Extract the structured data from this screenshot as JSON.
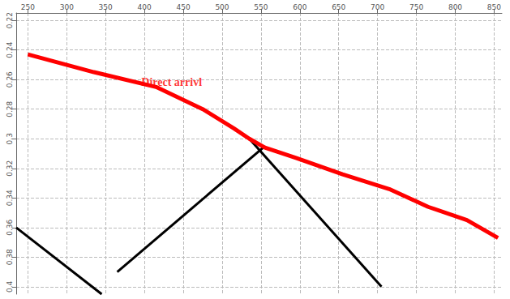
{
  "chart_data": {
    "type": "line",
    "xlim": [
      235,
      860
    ],
    "xticks": [
      250,
      300,
      350,
      400,
      450,
      500,
      550,
      600,
      650,
      700,
      750,
      800,
      850
    ],
    "ylim": [
      0.215,
      0.405
    ],
    "yticks": [
      0.22,
      0.24,
      0.26,
      0.28,
      0.3,
      0.32,
      0.34,
      0.36,
      0.38,
      0.4
    ],
    "grid": true,
    "series": [
      {
        "color": "#000000",
        "x": [
          555,
          365
        ],
        "values": [
          0.305,
          0.39
        ]
      },
      {
        "color": "#000000",
        "x": [
          535,
          705
        ],
        "values": [
          0.3,
          0.4
        ]
      },
      {
        "color": "#000000",
        "x": [
          235,
          345
        ],
        "values": [
          0.36,
          0.405
        ]
      },
      {
        "color": "#ff0000",
        "x": [
          250,
          335,
          415,
          475,
          515,
          535,
          555,
          595,
          655,
          715,
          765,
          815,
          855
        ],
        "values": [
          0.243,
          0.255,
          0.265,
          0.28,
          0.293,
          0.3,
          0.306,
          0.313,
          0.324,
          0.334,
          0.346,
          0.355,
          0.367
        ]
      }
    ],
    "annotations": [
      {
        "text": "Direct arrivl",
        "x": 435,
        "y": 0.262,
        "color": "#ff0000"
      }
    ]
  }
}
